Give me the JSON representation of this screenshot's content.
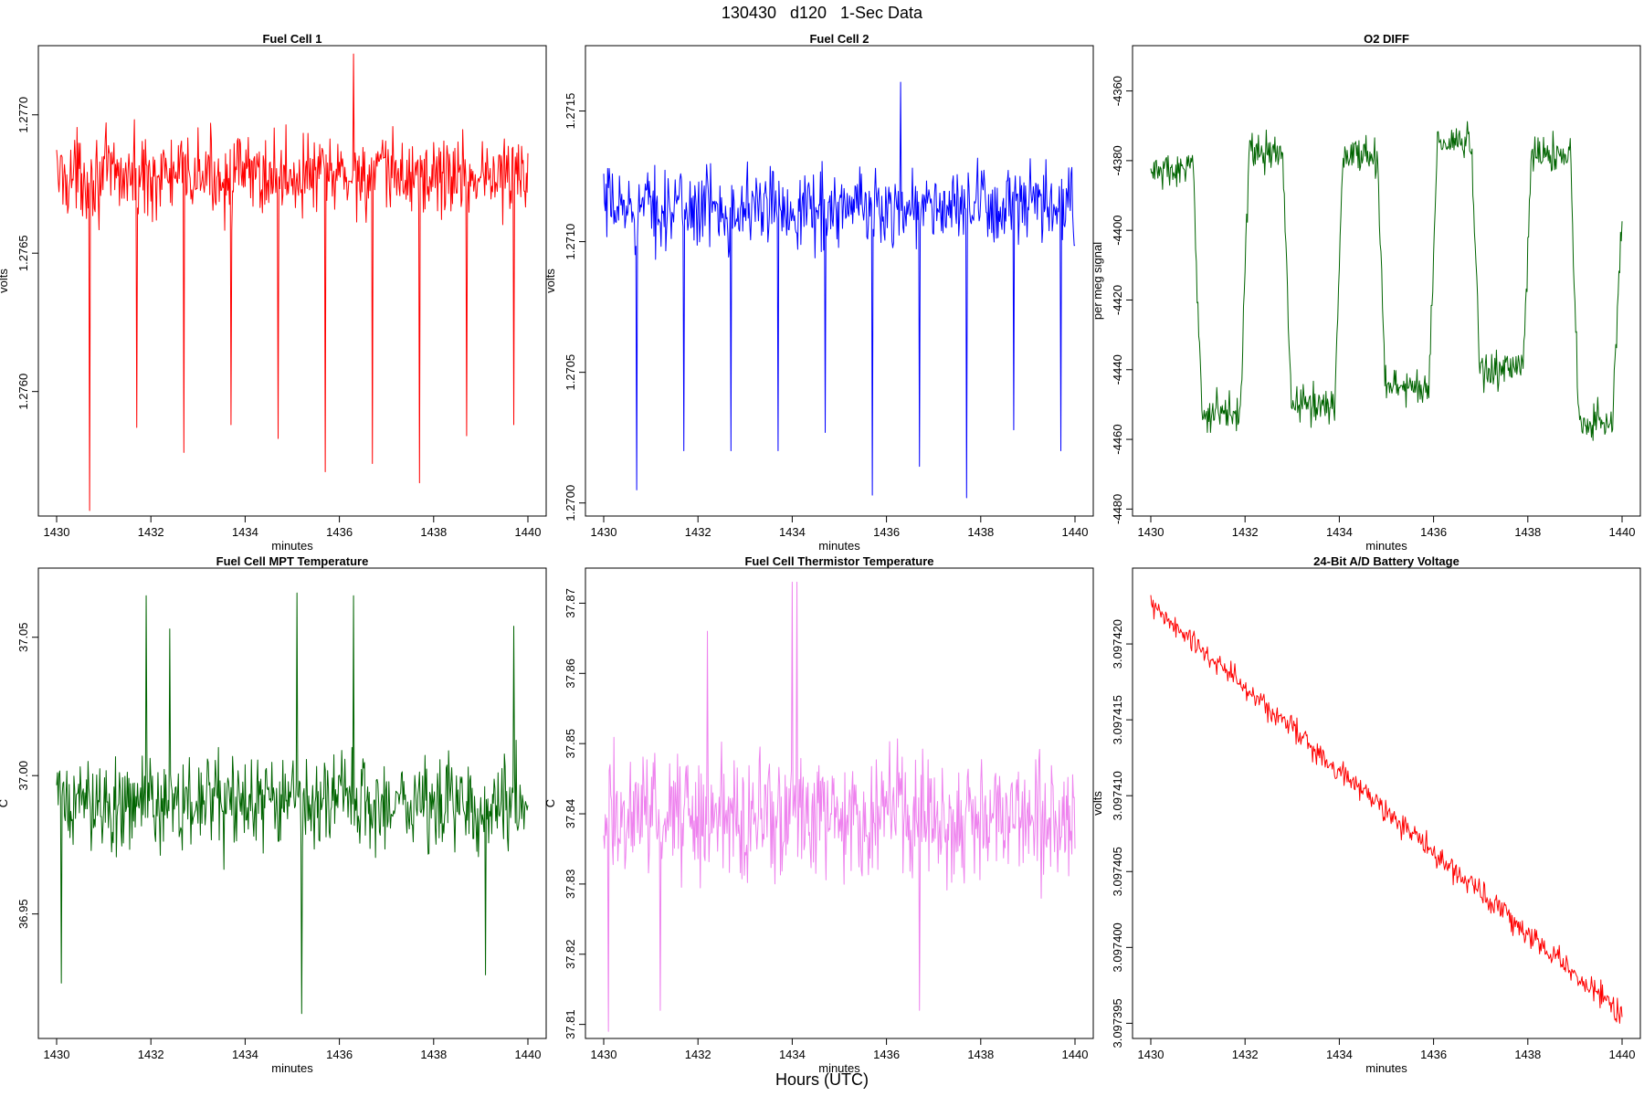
{
  "header": {
    "title": "130430   d120   1-Sec Data"
  },
  "footer": {
    "xlabel": "Hours (UTC)"
  },
  "chart_data": [
    {
      "type": "line",
      "title": "Fuel Cell 1",
      "xlabel": "minutes",
      "ylabel": "volts",
      "color": "#ff0000",
      "xlim": [
        1430,
        1440
      ],
      "ylim": [
        1.27555,
        1.27725
      ],
      "xticks": [
        "1430",
        "1432",
        "1434",
        "1436",
        "1438",
        "1440"
      ],
      "yticks": [
        "1.2760",
        "1.2765",
        "1.2770"
      ],
      "series": [
        {
          "pattern": "noise",
          "base": 1.27678,
          "amp": 0.00022,
          "spikes_down": [
            [
              1430.7,
              1.27557
            ],
            [
              1431.7,
              1.27587
            ],
            [
              1432.7,
              1.27578
            ],
            [
              1433.7,
              1.27588
            ],
            [
              1434.7,
              1.27583
            ],
            [
              1435.7,
              1.27571
            ],
            [
              1436.7,
              1.27574
            ],
            [
              1437.7,
              1.27567
            ],
            [
              1438.7,
              1.27584
            ],
            [
              1439.7,
              1.27588
            ]
          ],
          "spikes_up": [
            [
              1436.3,
              1.27722
            ]
          ]
        }
      ]
    },
    {
      "type": "line",
      "title": "Fuel Cell 2",
      "xlabel": "minutes",
      "ylabel": "volts",
      "color": "#0000ff",
      "xlim": [
        1430,
        1440
      ],
      "ylim": [
        1.26995,
        1.27175
      ],
      "xticks": [
        "1430",
        "1432",
        "1434",
        "1436",
        "1438",
        "1440"
      ],
      "yticks": [
        "1.2700",
        "1.2705",
        "1.2710",
        "1.2715"
      ],
      "series": [
        {
          "pattern": "noise",
          "base": 1.27113,
          "amp": 0.00022,
          "spikes_down": [
            [
              1430.7,
              1.27005
            ],
            [
              1431.7,
              1.2702
            ],
            [
              1432.7,
              1.2702
            ],
            [
              1433.7,
              1.2702
            ],
            [
              1434.7,
              1.27027
            ],
            [
              1435.7,
              1.27003
            ],
            [
              1436.7,
              1.27014
            ],
            [
              1437.7,
              1.27002
            ],
            [
              1438.7,
              1.27028
            ],
            [
              1439.7,
              1.2702
            ]
          ],
          "spikes_up": [
            [
              1436.3,
              1.27161
            ]
          ]
        }
      ]
    },
    {
      "type": "line",
      "title": "O2 DIFF",
      "xlabel": "minutes",
      "ylabel": "per meg signal",
      "color": "#006400",
      "xlim": [
        1430,
        1440
      ],
      "ylim": [
        -4482,
        -4347
      ],
      "xticks": [
        "1430",
        "1432",
        "1434",
        "1436",
        "1438",
        "1440"
      ],
      "yticks": [
        "-4480",
        "-4460",
        "-4440",
        "-4420",
        "-4400",
        "-4380",
        "-4360"
      ],
      "series": [
        {
          "pattern": "steps",
          "amp": 8,
          "levels": [
            [
              1430.0,
              -4383
            ],
            [
              1430.9,
              -4452
            ],
            [
              1431.9,
              -4378
            ],
            [
              1432.8,
              -4450
            ],
            [
              1433.9,
              -4378
            ],
            [
              1434.8,
              -4445
            ],
            [
              1435.9,
              -4375
            ],
            [
              1436.8,
              -4440
            ],
            [
              1437.9,
              -4378
            ],
            [
              1438.9,
              -4455
            ],
            [
              1439.8,
              -4400
            ]
          ]
        }
      ]
    },
    {
      "type": "line",
      "title": "Fuel Cell MPT Temperature",
      "xlabel": "minutes",
      "ylabel": "C",
      "color": "#006400",
      "xlim": [
        1430,
        1440
      ],
      "ylim": [
        36.905,
        37.075
      ],
      "xticks": [
        "1430",
        "1432",
        "1434",
        "1436",
        "1438",
        "1440"
      ],
      "yticks": [
        "36.95",
        "37.00",
        "37.05"
      ],
      "series": [
        {
          "pattern": "noise",
          "base": 36.99,
          "amp": 0.025,
          "spikes_up": [
            [
              1431.9,
              37.065
            ],
            [
              1435.1,
              37.066
            ],
            [
              1436.3,
              37.065
            ],
            [
              1432.4,
              37.053
            ],
            [
              1439.7,
              37.054
            ]
          ],
          "spikes_down": [
            [
              1435.2,
              36.914
            ],
            [
              1430.1,
              36.925
            ],
            [
              1439.1,
              36.928
            ]
          ]
        }
      ]
    },
    {
      "type": "line",
      "title": "Fuel Cell Thermistor Temperature",
      "xlabel": "minutes",
      "ylabel": "C",
      "color": "#ee82ee",
      "xlim": [
        1430,
        1440
      ],
      "ylim": [
        37.808,
        37.875
      ],
      "xticks": [
        "1430",
        "1432",
        "1434",
        "1436",
        "1438",
        "1440"
      ],
      "yticks": [
        "37.81",
        "37.82",
        "37.83",
        "37.84",
        "37.85",
        "37.86",
        "37.87"
      ],
      "series": [
        {
          "pattern": "noise",
          "base": 37.84,
          "amp": 0.013,
          "spikes_up": [
            [
              1434.0,
              37.873
            ],
            [
              1434.1,
              37.873
            ],
            [
              1432.2,
              37.866
            ]
          ],
          "spikes_down": [
            [
              1430.1,
              37.809
            ],
            [
              1431.2,
              37.812
            ],
            [
              1436.7,
              37.812
            ]
          ]
        }
      ]
    },
    {
      "type": "line",
      "title": "24-Bit A/D Battery Voltage",
      "xlabel": "minutes",
      "ylabel": "volts",
      "color": "#ff0000",
      "xlim": [
        1430,
        1440
      ],
      "ylim": [
        3.097394,
        3.097425
      ],
      "xticks": [
        "1430",
        "1432",
        "1434",
        "1436",
        "1438",
        "1440"
      ],
      "yticks": [
        "3.097395",
        "3.097400",
        "3.097405",
        "3.097410",
        "3.097415",
        "3.097420"
      ],
      "series": [
        {
          "pattern": "trend",
          "start": 3.0974225,
          "end": 3.0973955,
          "amp": 1.2e-06,
          "spikes_down": [
            [
              1439.95,
              3.097395
            ]
          ]
        }
      ]
    }
  ]
}
